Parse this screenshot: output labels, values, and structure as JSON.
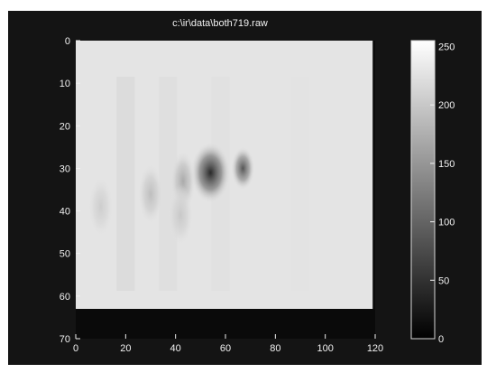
{
  "window": {
    "title": "c:\\ir\\data\\both719.raw"
  },
  "chart_data": {
    "type": "heatmap",
    "title": "c:\\ir\\data\\both719.raw",
    "xlabel": "",
    "ylabel": "",
    "xlim": [
      0,
      120
    ],
    "ylim": [
      70,
      0
    ],
    "y_axis_direction": "down",
    "x_ticks": [
      0,
      20,
      40,
      60,
      80,
      100,
      120
    ],
    "y_ticks": [
      0,
      10,
      20,
      30,
      40,
      50,
      60,
      70
    ],
    "data_extent": {
      "x": [
        0,
        119
      ],
      "y": [
        0,
        63
      ]
    },
    "background_value": 228,
    "colormap": "gray",
    "features": [
      {
        "x": 54,
        "y": 31,
        "value": 40
      },
      {
        "x": 67,
        "y": 30,
        "value": 85
      },
      {
        "x": 43,
        "y": 33,
        "value": 170
      },
      {
        "x": 30,
        "y": 36,
        "value": 190
      },
      {
        "x": 42,
        "y": 41,
        "value": 200
      },
      {
        "x": 10,
        "y": 39,
        "value": 205
      }
    ],
    "colorbar": {
      "range": [
        0,
        255
      ],
      "ticks": [
        0,
        50,
        100,
        150,
        200
      ],
      "tick_labels": [
        "0",
        "50",
        "100",
        "150",
        "200",
        "250"
      ],
      "label_values": [
        0,
        50,
        100,
        150,
        200,
        250
      ]
    }
  }
}
